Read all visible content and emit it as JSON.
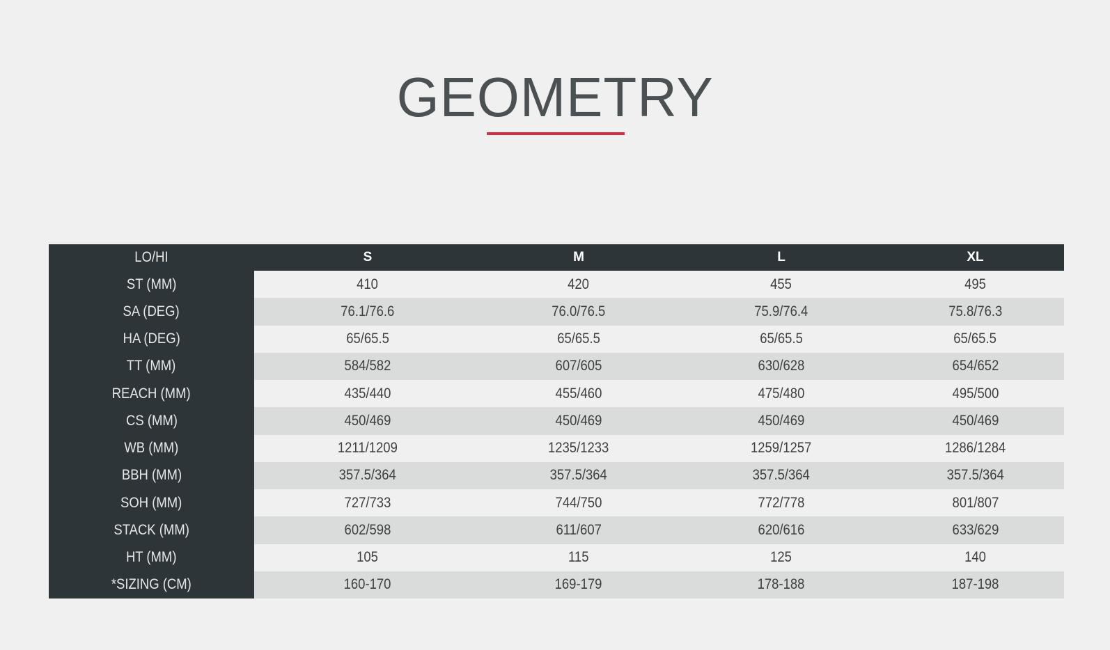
{
  "title": "GEOMETRY",
  "colors": {
    "accent": "#c8334a",
    "header_bg": "#2e3538",
    "row_light": "#f0f0f0",
    "row_alt": "#d9dcdb"
  },
  "table": {
    "corner_label": "LO/HI",
    "columns": [
      "S",
      "M",
      "L",
      "XL"
    ],
    "rows": [
      {
        "label": "ST (MM)",
        "values": [
          "410",
          "420",
          "455",
          "495"
        ]
      },
      {
        "label": "SA (DEG)",
        "values": [
          "76.1/76.6",
          "76.0/76.5",
          "75.9/76.4",
          "75.8/76.3"
        ]
      },
      {
        "label": "HA (DEG)",
        "values": [
          "65/65.5",
          "65/65.5",
          "65/65.5",
          "65/65.5"
        ]
      },
      {
        "label": "TT (MM)",
        "values": [
          "584/582",
          "607/605",
          "630/628",
          "654/652"
        ]
      },
      {
        "label": "REACH (MM)",
        "values": [
          "435/440",
          "455/460",
          "475/480",
          "495/500"
        ]
      },
      {
        "label": "CS (MM)",
        "values": [
          "450/469",
          "450/469",
          "450/469",
          "450/469"
        ]
      },
      {
        "label": "WB (MM)",
        "values": [
          "1211/1209",
          "1235/1233",
          "1259/1257",
          "1286/1284"
        ]
      },
      {
        "label": "BBH (MM)",
        "values": [
          "357.5/364",
          "357.5/364",
          "357.5/364",
          "357.5/364"
        ]
      },
      {
        "label": "SOH (MM)",
        "values": [
          "727/733",
          "744/750",
          "772/778",
          "801/807"
        ]
      },
      {
        "label": "STACK (MM)",
        "values": [
          "602/598",
          "611/607",
          "620/616",
          "633/629"
        ]
      },
      {
        "label": "HT (MM)",
        "values": [
          "105",
          "115",
          "125",
          "140"
        ]
      },
      {
        "label": "*SIZING (CM)",
        "values": [
          "160-170",
          "169-179",
          "178-188",
          "187-198"
        ]
      }
    ]
  }
}
